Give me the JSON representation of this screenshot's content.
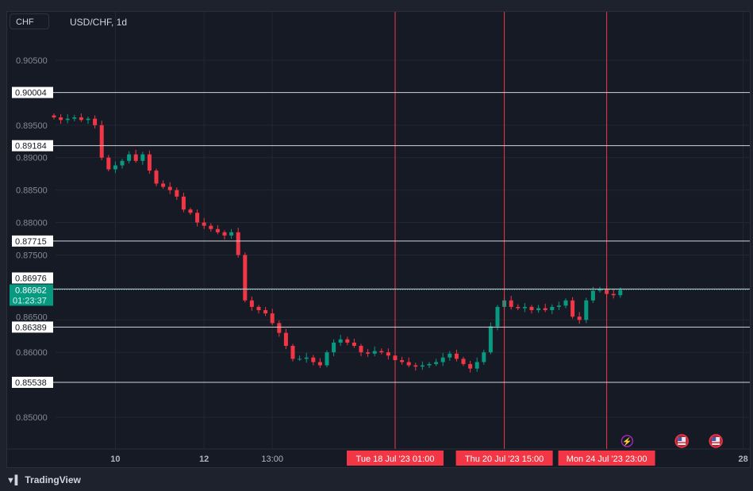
{
  "header": {
    "symbol_button": "CHF",
    "title": "USD/CHF, 1d"
  },
  "footer": {
    "brand": "TradingView"
  },
  "chart_data": {
    "type": "candlestick",
    "ylim": [
      0.8465,
      0.9088
    ],
    "grid": true,
    "y_ticks": [
      "0.90500",
      "0.89500",
      "0.89000",
      "0.88500",
      "0.88000",
      "0.87500",
      "0.86500",
      "0.86000",
      "0.85000"
    ],
    "x_ticks": [
      {
        "label": "10",
        "i": 9
      },
      {
        "label": "12",
        "i": 22
      },
      {
        "label": "13:00",
        "i": 32
      },
      {
        "label": "28",
        "i": 101
      }
    ],
    "closes": [
      0.8962,
      0.8958,
      0.896,
      0.8962,
      0.8958,
      0.896,
      0.895,
      0.89,
      0.8882,
      0.8888,
      0.8895,
      0.8905,
      0.8895,
      0.8905,
      0.888,
      0.886,
      0.8855,
      0.885,
      0.884,
      0.882,
      0.8815,
      0.88,
      0.8795,
      0.879,
      0.8785,
      0.878,
      0.8785,
      0.875,
      0.868,
      0.867,
      0.8665,
      0.866,
      0.8645,
      0.863,
      0.861,
      0.859,
      0.859,
      0.8592,
      0.8585,
      0.858,
      0.86,
      0.8615,
      0.862,
      0.8615,
      0.861,
      0.86,
      0.8598,
      0.8602,
      0.86,
      0.8595,
      0.8588,
      0.8585,
      0.858,
      0.8578,
      0.858,
      0.8582,
      0.8585,
      0.8592,
      0.8598,
      0.859,
      0.8582,
      0.8575,
      0.8585,
      0.86,
      0.864,
      0.867,
      0.868,
      0.867,
      0.8668,
      0.867,
      0.8665,
      0.8668,
      0.8665,
      0.867,
      0.8672,
      0.868,
      0.8655,
      0.865,
      0.868,
      0.8695,
      0.8698,
      0.869,
      0.8688,
      0.8696
    ],
    "horizontal_levels": [
      "0.90004",
      "0.89184",
      "0.87715",
      "0.86976",
      "0.86389",
      "0.85538"
    ],
    "current_price": {
      "value": "0.86962",
      "countdown": "01:23:37",
      "color": "#089981"
    },
    "vertical_markers": [
      {
        "label": "Tue 18 Jul '23   01:00",
        "i": 50
      },
      {
        "label": "Thu 20 Jul '23   15:00",
        "i": 66
      },
      {
        "label": "Mon 24 Jul '23   23:00",
        "i": 81
      }
    ],
    "events": [
      {
        "icon": "lightning-icon",
        "i": 84
      },
      {
        "icon": "us-flag-icon",
        "i": 92
      },
      {
        "icon": "us-flag-icon",
        "i": 97
      }
    ],
    "colors": {
      "up": "#089981",
      "down": "#f23645",
      "marker": "#f23645",
      "level": "#d1d4dc"
    }
  }
}
